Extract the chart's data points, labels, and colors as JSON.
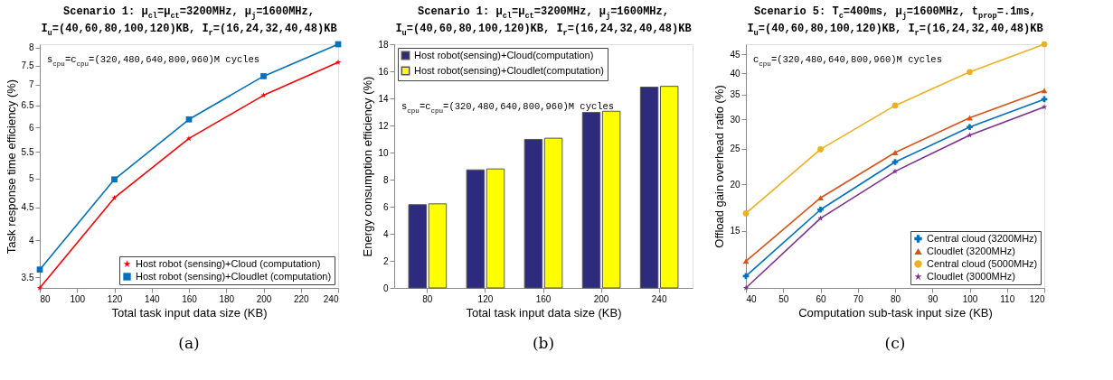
{
  "chart_data": [
    {
      "type": "line",
      "title": [
        "Scenario 1: μ$_{cl}$=μ$_{ct}$=3200MHz, μ$_{j}$=1600MHz,",
        "I$_{u}$=(40,60,80,100,120)KB, I$_{r}$=(16,24,32,40,48)KB"
      ],
      "xlabel": "Total task input data size (KB)",
      "ylabel": "Task response time efficiency (%)",
      "x": [
        80,
        120,
        160,
        200,
        240
      ],
      "series": [
        {
          "name": "Host robot (sensing)+Cloud (computation)",
          "color": "#ff0000",
          "marker": "star",
          "values": [
            3.37,
            4.66,
            5.77,
            6.74,
            7.59
          ]
        },
        {
          "name": "Host robot (sensing)+Cloudlet (computation)",
          "color": "#0072bd",
          "marker": "square",
          "values": [
            3.6,
            4.98,
            6.18,
            7.22,
            8.1
          ]
        }
      ],
      "xlim": [
        80,
        240
      ],
      "xticks": [
        80,
        100,
        120,
        140,
        160,
        180,
        200,
        220,
        240
      ],
      "ylim": [
        3.37,
        8.1
      ],
      "yticks": [
        3.5,
        4,
        4.5,
        5,
        5.5,
        6,
        6.5,
        7,
        7.5,
        8
      ],
      "log": "y",
      "grid": false,
      "legend": "bottom right",
      "annotations": [
        "s$_{cpu}$=c$_{cpu}$=(320,480,640,800,960)M cycles",
        "(a)"
      ]
    },
    {
      "type": "bar",
      "title": [
        "Scenario 1: μ$_{cl}$=μ$_{ct}$=3200MHz, μ$_{j}$=1600MHz,",
        "I$_{u}$=(40,60,80,100,120)KB, I$_{r}$=(16,24,32,40,48)KB"
      ],
      "xlabel": "Total task input data size (KB)",
      "ylabel": "Energy consumption efficiency (%)",
      "categories": [
        "80",
        "120",
        "160",
        "200",
        "240"
      ],
      "series": [
        {
          "name": "Host robot(sensing)+Cloud(computation)",
          "color": "#2e2a7e",
          "values": [
            6.15,
            8.72,
            10.97,
            12.96,
            14.83
          ]
        },
        {
          "name": "Host robot(sensing)+Cloudlet(computation)",
          "color": "#ffff00",
          "values": [
            6.21,
            8.79,
            11.06,
            13.05,
            14.89
          ]
        }
      ],
      "ylim": [
        0,
        18
      ],
      "yticks": [
        0,
        2,
        4,
        6,
        8,
        10,
        12,
        14,
        16,
        18
      ],
      "grid": false,
      "legend": "top left",
      "annotations": [
        "s$_{cpu}$=c$_{cpu}$=(320,480,640,800,960)M cycles",
        "(b)"
      ]
    },
    {
      "type": "line",
      "title": [
        "Scenario 5: T$_{c}$=400ms, μ$_{j}$=1600MHz, t$_{prop}$=.1ms,",
        "I$_{u}$=(40,60,80,100,120)KB, I$_{r}$=(16,24,32,40,48)KB"
      ],
      "xlabel": "Computation sub-task input size (KB)",
      "ylabel": "Offload gain overhead ratio (%)",
      "x": [
        40,
        60,
        80,
        100,
        120
      ],
      "series": [
        {
          "name": "Central cloud (3200MHz)",
          "color": "#0072bd",
          "marker": "cross",
          "values": [
            11.3,
            17.1,
            23.0,
            28.6,
            34.0
          ]
        },
        {
          "name": "Cloudlet (3200MHz)",
          "color": "#d95319",
          "marker": "triangle",
          "values": [
            12.4,
            18.4,
            24.4,
            30.3,
            35.9
          ]
        },
        {
          "name": "Central cloud (5000MHz)",
          "color": "#edb120",
          "marker": "circle",
          "values": [
            16.7,
            24.9,
            32.7,
            40.3,
            47.9
          ]
        },
        {
          "name": "Cloudlet (3000MHz)",
          "color": "#7e2f8e",
          "marker": "star",
          "values": [
            10.5,
            16.2,
            21.7,
            27.2,
            32.4
          ]
        }
      ],
      "xlim": [
        40,
        120
      ],
      "xticks": [
        40,
        50,
        60,
        70,
        80,
        90,
        100,
        110,
        120
      ],
      "ylim": [
        10.5,
        47.9
      ],
      "yticks": [
        15,
        20,
        25,
        30,
        35,
        40,
        45
      ],
      "log": "y",
      "grid": false,
      "legend": "bottom right",
      "annotations": [
        "c$_{cpu}$=(320,480,640,800,960)M cycles",
        "(c)"
      ]
    }
  ]
}
